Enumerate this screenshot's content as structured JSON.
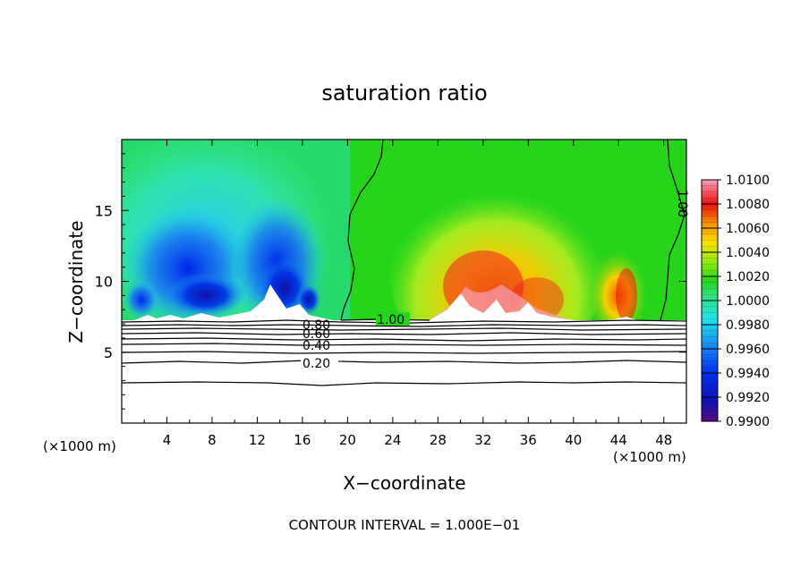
{
  "chart_data": {
    "type": "heatmap",
    "title": "saturation ratio",
    "xlabel": "X−coordinate",
    "ylabel": "Z−coordinate",
    "x_unit_left": "(×1000 m)",
    "x_unit_right": "(×1000 m)",
    "x_ticks": [
      4,
      8,
      12,
      16,
      20,
      24,
      28,
      32,
      36,
      40,
      44,
      48
    ],
    "y_ticks": [
      5,
      10,
      15
    ],
    "xlim": [
      0,
      50
    ],
    "ylim": [
      0,
      20
    ],
    "colorbar": {
      "labels": [
        "1.0100",
        "1.0080",
        "1.0060",
        "1.0040",
        "1.0020",
        "1.0000",
        "0.9980",
        "0.9960",
        "0.9940",
        "0.9920",
        "0.9900"
      ],
      "range": [
        0.99,
        1.01
      ]
    },
    "contour_labels": [
      "1.00",
      "0.80",
      "0.60",
      "0.40",
      "0.20",
      "1.00"
    ],
    "footer": "CONTOUR INTERVAL = 1.000E−01",
    "colors": {
      "dry_min": "#5a0c7e",
      "dry": "#0022ee",
      "cyan": "#22e0ee",
      "neutral": "#27d41c",
      "moist": "#f8e000",
      "orange": "#f59000",
      "red": "#ee1010",
      "moist_max": "#f8a0b8"
    }
  }
}
